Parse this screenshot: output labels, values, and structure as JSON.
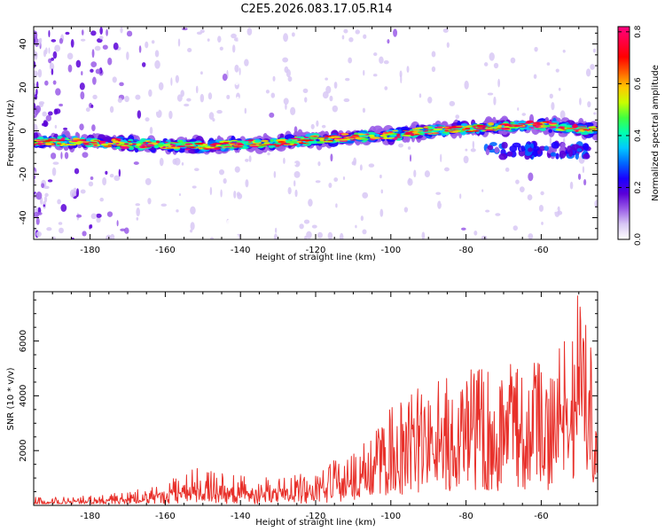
{
  "title": "C2E5.2026.083.17.05.R14",
  "chart_data": [
    {
      "type": "heatmap",
      "xlabel": "Height of straight line (km)",
      "ylabel": "Frequency (Hz)",
      "xlim": [
        -195,
        -45
      ],
      "ylim": [
        -50,
        48
      ],
      "xticks": [
        -180,
        -160,
        -140,
        -120,
        -100,
        -80,
        -60
      ],
      "yticks": [
        -40,
        -20,
        0,
        20,
        40
      ],
      "colorbar": {
        "label": "Normalized spectral amplitude",
        "range": [
          0,
          0.82
        ],
        "ticks": [
          0.0,
          0.2,
          0.4,
          0.6,
          0.8
        ],
        "colors": [
          "#ffffff",
          "#d8c8f4",
          "#9a5ce8",
          "#5a00d8",
          "#1a00ff",
          "#0066ff",
          "#00c8ff",
          "#00ffb0",
          "#40ff40",
          "#c8ff00",
          "#ffc800",
          "#ff6000",
          "#ff0000",
          "#ff0040",
          "#ff0080"
        ]
      },
      "band_centerline": [
        [
          -195,
          -5
        ],
        [
          -180,
          -5
        ],
        [
          -170,
          -6
        ],
        [
          -160,
          -6.5
        ],
        [
          -150,
          -7
        ],
        [
          -140,
          -6
        ],
        [
          -130,
          -5.5
        ],
        [
          -120,
          -4
        ],
        [
          -110,
          -3
        ],
        [
          -100,
          -2
        ],
        [
          -90,
          0
        ],
        [
          -80,
          1
        ],
        [
          -70,
          2
        ],
        [
          -60,
          3
        ],
        [
          -50,
          1
        ],
        [
          -45,
          0
        ]
      ],
      "band_peak_amplitude": 0.8
    },
    {
      "type": "line",
      "xlabel": "Height of straight line (km)",
      "ylabel": "SNR (10 * v/v)",
      "xlim": [
        -195,
        -45
      ],
      "ylim": [
        0,
        7800
      ],
      "xticks": [
        -180,
        -160,
        -140,
        -120,
        -100,
        -80,
        -60
      ],
      "yticks": [
        2000,
        4000,
        6000
      ],
      "series": [
        {
          "name": "SNR",
          "color": "#e8302a",
          "envelope": {
            "x": [
              -195,
              -180,
              -170,
              -160,
              -150,
              -145,
              -140,
              -130,
              -120,
              -110,
              -105,
              -100,
              -90,
              -80,
              -70,
              -60,
              -55,
              -50,
              -47,
              -45
            ],
            "max": [
              300,
              350,
              500,
              900,
              1600,
              1200,
              1100,
              1000,
              1300,
              2000,
              2500,
              3600,
              4600,
              5000,
              5200,
              5300,
              6000,
              7800,
              6500,
              6000
            ]
          }
        }
      ]
    }
  ]
}
